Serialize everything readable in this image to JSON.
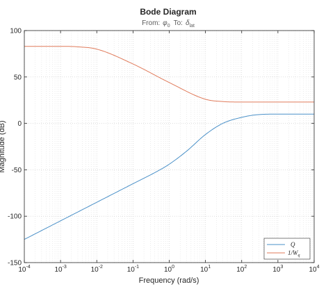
{
  "chart_data": {
    "type": "line",
    "title": "Bode Diagram",
    "subtitle": {
      "from_label": "From:",
      "from_symbol": "φ",
      "from_sub": "0",
      "to_label": "To:",
      "to_symbol": "δ",
      "to_sub": "lat"
    },
    "xlabel": "Frequency  (rad/s)",
    "ylabel": "Magnitude (dB)",
    "x_scale": "log",
    "xlim": [
      0.0001,
      10000
    ],
    "ylim": [
      -150,
      100
    ],
    "x_ticks": [
      {
        "value": 0.0001,
        "base": "10",
        "exp": "-4"
      },
      {
        "value": 0.001,
        "base": "10",
        "exp": "-3"
      },
      {
        "value": 0.01,
        "base": "10",
        "exp": "-2"
      },
      {
        "value": 0.1,
        "base": "10",
        "exp": "-1"
      },
      {
        "value": 1,
        "base": "10",
        "exp": "0"
      },
      {
        "value": 10,
        "base": "10",
        "exp": "1"
      },
      {
        "value": 100,
        "base": "10",
        "exp": "2"
      },
      {
        "value": 1000,
        "base": "10",
        "exp": "3"
      },
      {
        "value": 10000,
        "base": "10",
        "exp": "4"
      }
    ],
    "y_ticks": [
      100,
      50,
      0,
      -50,
      -100,
      -150
    ],
    "grid": true,
    "legend_position": "bottom-right",
    "series": [
      {
        "name": "Q",
        "color": "#4a90c8",
        "x": [
          0.0001,
          0.001,
          0.01,
          0.1,
          0.5,
          1,
          3,
          10,
          30,
          100,
          300,
          1000,
          10000
        ],
        "y": [
          -125,
          -105,
          -85,
          -65,
          -51,
          -44,
          -30,
          -12,
          0,
          6.5,
          9.5,
          10,
          10
        ]
      },
      {
        "name": "1/W",
        "name_sub": "q",
        "color": "#e07a5a",
        "x": [
          0.0001,
          0.001,
          0.003,
          0.01,
          0.1,
          1,
          10,
          30,
          100,
          1000,
          10000
        ],
        "y": [
          83,
          83,
          82.5,
          80,
          64,
          44,
          26,
          23.5,
          23,
          23,
          23
        ]
      }
    ]
  }
}
